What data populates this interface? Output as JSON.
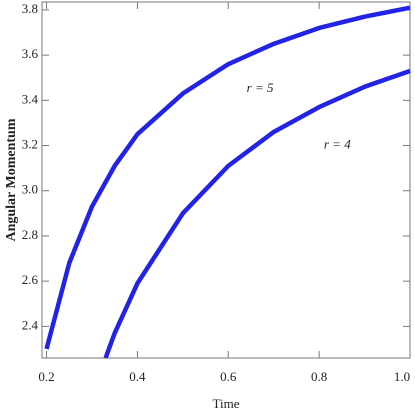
{
  "chart_data": {
    "type": "line",
    "xlabel": "Time",
    "ylabel": "Angular Momentum",
    "xlim": [
      0.19,
      1.0
    ],
    "ylim": [
      2.26,
      3.835
    ],
    "xticks": [
      0.2,
      0.4,
      0.6,
      0.8,
      {
        "value": 1.0,
        "label": "1.0"
      }
    ],
    "yticks": [
      2.4,
      2.6,
      2.8,
      {
        "value": 3.0,
        "label": "3.0"
      },
      3.2,
      3.4,
      3.6,
      3.8
    ],
    "series": [
      {
        "color": "#2323e6",
        "x": [
          0.2,
          0.25,
          0.3,
          0.35,
          0.4,
          0.5,
          0.6,
          0.7,
          0.8,
          0.9,
          1.0
        ],
        "values": [
          2.3,
          2.68,
          2.93,
          3.11,
          3.25,
          3.43,
          3.56,
          3.65,
          3.72,
          3.77,
          3.81
        ]
      },
      {
        "color": "#2323e6",
        "x": [
          0.33,
          0.35,
          0.4,
          0.5,
          0.6,
          0.7,
          0.8,
          0.9,
          1.0
        ],
        "values": [
          2.26,
          2.37,
          2.59,
          2.9,
          3.11,
          3.26,
          3.37,
          3.46,
          3.53
        ]
      }
    ],
    "annotations": [
      {
        "text": "r = 5",
        "x": 0.67,
        "y": 3.45
      },
      {
        "text": "r = 4",
        "x": 0.84,
        "y": 3.2
      }
    ]
  }
}
